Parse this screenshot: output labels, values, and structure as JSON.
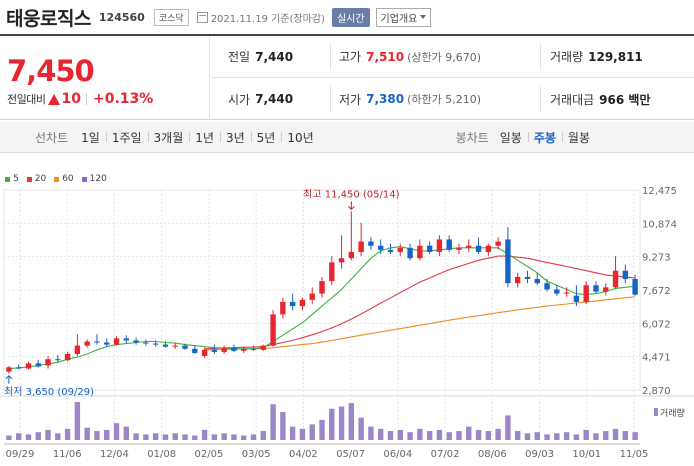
{
  "header": {
    "stock_name": "태웅로직스",
    "stock_code": "124560",
    "market": "코스닥",
    "date_text": "2021.11.19 기준(장마감)",
    "realtime_label": "실시간",
    "overview_label": "기업개요"
  },
  "price": {
    "current": "7,450",
    "change_label": "전일대비",
    "change_value": "10",
    "change_percent": "+0.13%"
  },
  "quotes": {
    "prev_close_label": "전일",
    "prev_close": "7,440",
    "high_label": "고가",
    "high": "7,510",
    "upper_limit": "(상한가 9,670)",
    "volume_label": "거래량",
    "volume": "129,811",
    "open_label": "시가",
    "open": "7,440",
    "low_label": "저가",
    "low": "7,380",
    "lower_limit": "(하한가 5,210)",
    "amount_label": "거래대금",
    "amount": "966 백만"
  },
  "tabs": {
    "line_title": "선차트",
    "line_tabs": [
      {
        "label": "1일"
      },
      {
        "label": "1주일"
      },
      {
        "label": "3개월"
      },
      {
        "label": "1년"
      },
      {
        "label": "3년"
      },
      {
        "label": "5년"
      },
      {
        "label": "10년"
      }
    ],
    "candle_title": "봉차트",
    "candle_tabs": [
      {
        "label": "일봉",
        "active": false
      },
      {
        "label": "주봉",
        "active": true
      },
      {
        "label": "월봉",
        "active": false
      }
    ]
  },
  "colors": {
    "up": "#e8262f",
    "down": "#1763c7",
    "ma5": "#3cb43c",
    "ma20": "#e0394a",
    "ma60": "#f08c1c",
    "ma120": "#8c64c8",
    "volume": "#9b86c8",
    "grid": "#e6e6e6"
  },
  "chart_data": {
    "type": "candlestick",
    "legend": [
      "5",
      "20",
      "60",
      "120"
    ],
    "y_ticks": [
      "12,475",
      "10,874",
      "9,273",
      "7,672",
      "6,072",
      "4,471",
      "2,870"
    ],
    "ylim": [
      2870,
      12475
    ],
    "x_ticks": [
      "09/29",
      "11/06",
      "12/04",
      "01/08",
      "02/05",
      "03/05",
      "04/02",
      "05/07",
      "06/04",
      "07/02",
      "08/06",
      "09/03",
      "10/01",
      "11/05"
    ],
    "high_annotation": "최고 11,450 (05/14)",
    "low_annotation": "최저 3,650 (09/29)",
    "volume_label": "거래량",
    "candles": [
      {
        "o": 3750,
        "h": 4020,
        "l": 3650,
        "c": 3960
      },
      {
        "o": 3960,
        "h": 4100,
        "l": 3870,
        "c": 3900
      },
      {
        "o": 3900,
        "h": 4250,
        "l": 3850,
        "c": 4150
      },
      {
        "o": 4150,
        "h": 4320,
        "l": 3950,
        "c": 4000
      },
      {
        "o": 4050,
        "h": 4500,
        "l": 3900,
        "c": 4350
      },
      {
        "o": 4350,
        "h": 4550,
        "l": 4200,
        "c": 4300
      },
      {
        "o": 4300,
        "h": 4700,
        "l": 4250,
        "c": 4600
      },
      {
        "o": 4600,
        "h": 5550,
        "l": 4500,
        "c": 5000
      },
      {
        "o": 5000,
        "h": 5300,
        "l": 4900,
        "c": 5200
      },
      {
        "o": 5200,
        "h": 5550,
        "l": 5050,
        "c": 5150
      },
      {
        "o": 5150,
        "h": 5350,
        "l": 4950,
        "c": 5050
      },
      {
        "o": 5050,
        "h": 5450,
        "l": 5000,
        "c": 5350
      },
      {
        "o": 5350,
        "h": 5500,
        "l": 5100,
        "c": 5250
      },
      {
        "o": 5250,
        "h": 5400,
        "l": 5050,
        "c": 5150
      },
      {
        "o": 5150,
        "h": 5300,
        "l": 5000,
        "c": 5100
      },
      {
        "o": 5100,
        "h": 5250,
        "l": 4950,
        "c": 5050
      },
      {
        "o": 5050,
        "h": 5200,
        "l": 4900,
        "c": 4950
      },
      {
        "o": 4950,
        "h": 5150,
        "l": 4850,
        "c": 5000
      },
      {
        "o": 5000,
        "h": 5100,
        "l": 4800,
        "c": 4850
      },
      {
        "o": 4850,
        "h": 5000,
        "l": 4600,
        "c": 4650
      },
      {
        "o": 4500,
        "h": 4900,
        "l": 4400,
        "c": 4800
      },
      {
        "o": 4800,
        "h": 5050,
        "l": 4600,
        "c": 4700
      },
      {
        "o": 4700,
        "h": 5000,
        "l": 4600,
        "c": 4900
      },
      {
        "o": 4900,
        "h": 5050,
        "l": 4700,
        "c": 4750
      },
      {
        "o": 4750,
        "h": 4950,
        "l": 4650,
        "c": 4850
      },
      {
        "o": 4850,
        "h": 5000,
        "l": 4750,
        "c": 4800
      },
      {
        "o": 4800,
        "h": 5050,
        "l": 4750,
        "c": 5000
      },
      {
        "o": 5000,
        "h": 6700,
        "l": 4950,
        "c": 6500
      },
      {
        "o": 6500,
        "h": 7300,
        "l": 6300,
        "c": 7100
      },
      {
        "o": 7100,
        "h": 7500,
        "l": 6700,
        "c": 6900
      },
      {
        "o": 6900,
        "h": 7300,
        "l": 6700,
        "c": 7200
      },
      {
        "o": 7200,
        "h": 7800,
        "l": 7000,
        "c": 7500
      },
      {
        "o": 7500,
        "h": 8300,
        "l": 7300,
        "c": 8100
      },
      {
        "o": 8100,
        "h": 9300,
        "l": 7900,
        "c": 9000
      },
      {
        "o": 9000,
        "h": 10300,
        "l": 8700,
        "c": 9200
      },
      {
        "o": 9200,
        "h": 11450,
        "l": 9100,
        "c": 9500
      },
      {
        "o": 9500,
        "h": 10900,
        "l": 9300,
        "c": 10000
      },
      {
        "o": 10000,
        "h": 10200,
        "l": 9600,
        "c": 9800
      },
      {
        "o": 9800,
        "h": 10100,
        "l": 9400,
        "c": 9600
      },
      {
        "o": 9600,
        "h": 9900,
        "l": 9400,
        "c": 9500
      },
      {
        "o": 9500,
        "h": 9900,
        "l": 9300,
        "c": 9700
      },
      {
        "o": 9700,
        "h": 9900,
        "l": 9100,
        "c": 9200
      },
      {
        "o": 9200,
        "h": 10100,
        "l": 9100,
        "c": 9800
      },
      {
        "o": 9800,
        "h": 10000,
        "l": 9400,
        "c": 9500
      },
      {
        "o": 9500,
        "h": 10300,
        "l": 9300,
        "c": 10100
      },
      {
        "o": 10100,
        "h": 10300,
        "l": 9500,
        "c": 9600
      },
      {
        "o": 9600,
        "h": 9900,
        "l": 9400,
        "c": 9700
      },
      {
        "o": 9700,
        "h": 10100,
        "l": 9500,
        "c": 9800
      },
      {
        "o": 9800,
        "h": 10200,
        "l": 9400,
        "c": 9500
      },
      {
        "o": 9500,
        "h": 9900,
        "l": 9300,
        "c": 9800
      },
      {
        "o": 9800,
        "h": 10200,
        "l": 9600,
        "c": 10000
      },
      {
        "o": 10100,
        "h": 10700,
        "l": 7800,
        "c": 8000
      },
      {
        "o": 8000,
        "h": 8500,
        "l": 7800,
        "c": 8300
      },
      {
        "o": 8300,
        "h": 8600,
        "l": 8000,
        "c": 8200
      },
      {
        "o": 8200,
        "h": 8500,
        "l": 7900,
        "c": 8000
      },
      {
        "o": 8000,
        "h": 8200,
        "l": 7600,
        "c": 7700
      },
      {
        "o": 7700,
        "h": 7900,
        "l": 7400,
        "c": 7500
      },
      {
        "o": 7500,
        "h": 7800,
        "l": 7350,
        "c": 7550
      },
      {
        "o": 7400,
        "h": 7900,
        "l": 6900,
        "c": 7100
      },
      {
        "o": 7100,
        "h": 8100,
        "l": 7000,
        "c": 7900
      },
      {
        "o": 7900,
        "h": 8100,
        "l": 7500,
        "c": 7600
      },
      {
        "o": 7600,
        "h": 8000,
        "l": 7400,
        "c": 7800
      },
      {
        "o": 7800,
        "h": 9300,
        "l": 7700,
        "c": 8600
      },
      {
        "o": 8600,
        "h": 8900,
        "l": 8000,
        "c": 8200
      },
      {
        "o": 8200,
        "h": 8400,
        "l": 7400,
        "c": 7450
      }
    ],
    "volumes": [
      4,
      6,
      5,
      7,
      9,
      6,
      10,
      34,
      11,
      8,
      9,
      15,
      12,
      6,
      5,
      6,
      5,
      6,
      5,
      4,
      9,
      5,
      6,
      5,
      4,
      5,
      8,
      32,
      25,
      12,
      10,
      14,
      18,
      28,
      30,
      33,
      20,
      12,
      10,
      8,
      9,
      7,
      10,
      8,
      9,
      7,
      8,
      12,
      9,
      8,
      10,
      22,
      8,
      6,
      7,
      5,
      6,
      7,
      5,
      9,
      6,
      8,
      10,
      8,
      7
    ],
    "ma5": [
      3900,
      3930,
      3980,
      4050,
      4120,
      4200,
      4350,
      4450,
      4600,
      4800,
      4950,
      5050,
      5100,
      5150,
      5200,
      5200,
      5150,
      5120,
      5050,
      5000,
      4950,
      4900,
      4880,
      4850,
      4850,
      4850,
      4900,
      5200,
      5500,
      5800,
      6100,
      6500,
      6900,
      7300,
      7700,
      8200,
      8700,
      9200,
      9550,
      9700,
      9750,
      9650,
      9550,
      9550,
      9600,
      9650,
      9700,
      9700,
      9700,
      9700,
      9700,
      9400,
      9100,
      8800,
      8500,
      8100,
      7900,
      7700,
      7500,
      7450,
      7500,
      7600,
      7750,
      7800,
      7850
    ],
    "ma20": [
      null,
      null,
      null,
      null,
      null,
      null,
      null,
      null,
      null,
      null,
      null,
      null,
      null,
      null,
      null,
      null,
      null,
      null,
      null,
      null,
      4850,
      4870,
      4890,
      4900,
      4920,
      4930,
      4950,
      5050,
      5150,
      5250,
      5380,
      5520,
      5680,
      5850,
      6050,
      6280,
      6520,
      6780,
      7050,
      7300,
      7550,
      7800,
      8050,
      8250,
      8450,
      8650,
      8800,
      8950,
      9100,
      9200,
      9300,
      9300,
      9250,
      9200,
      9100,
      9000,
      8900,
      8800,
      8700,
      8600,
      8500,
      8400,
      8350,
      8300,
      8250
    ],
    "ma60": [
      null,
      null,
      null,
      null,
      null,
      null,
      null,
      null,
      null,
      null,
      null,
      null,
      null,
      null,
      null,
      null,
      null,
      null,
      null,
      null,
      4800,
      4810,
      4820,
      4830,
      4840,
      4850,
      4860,
      4900,
      4950,
      5000,
      5050,
      5100,
      5170,
      5250,
      5330,
      5420,
      5500,
      5580,
      5660,
      5740,
      5820,
      5900,
      5980,
      6060,
      6140,
      6220,
      6300,
      6370,
      6440,
      6510,
      6580,
      6650,
      6720,
      6780,
      6840,
      6900,
      6950,
      7000,
      7050,
      7100,
      7150,
      7200,
      7250,
      7300,
      7350
    ]
  }
}
